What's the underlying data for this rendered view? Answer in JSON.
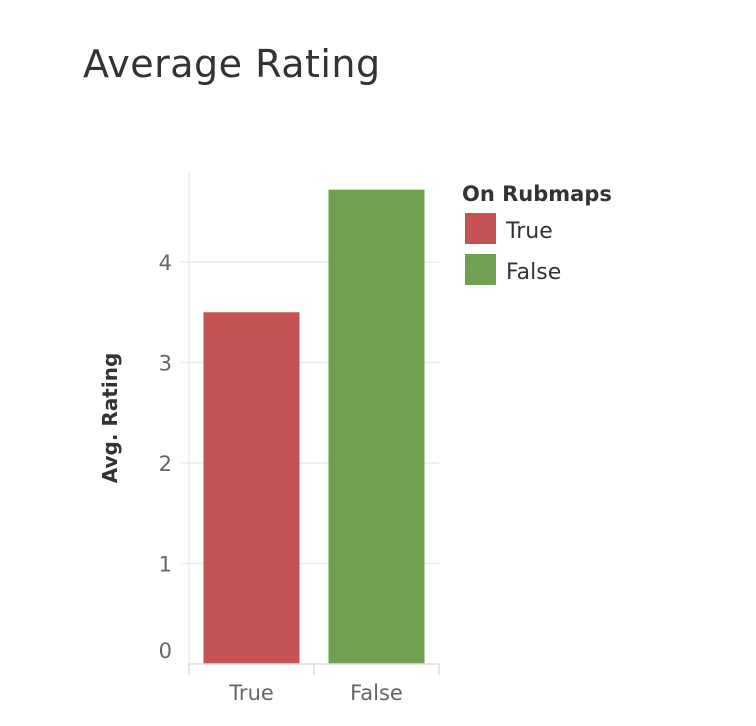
{
  "chart_data": {
    "type": "bar",
    "title": "Average Rating",
    "xlabel": "",
    "ylabel": "Avg. Rating",
    "categories": [
      "True",
      "False"
    ],
    "values": [
      3.5,
      4.72
    ],
    "yticks": [
      0,
      1,
      2,
      3,
      4
    ],
    "ylim": [
      0,
      4.95
    ],
    "grid": true,
    "colors": [
      "#c55353",
      "#6fa051"
    ],
    "legend": {
      "title": "On Rubmaps",
      "placement": "right",
      "entries": [
        {
          "label": "True",
          "color": "#c55353"
        },
        {
          "label": "False",
          "color": "#6fa051"
        }
      ]
    }
  }
}
